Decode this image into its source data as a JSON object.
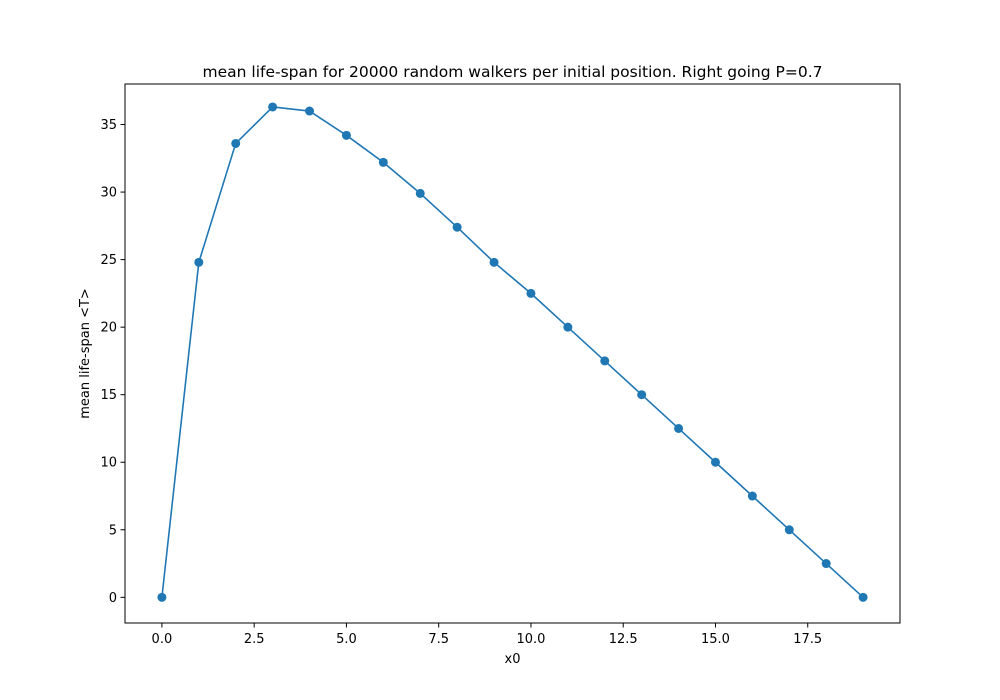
{
  "chart_data": {
    "type": "line",
    "title": "mean life-span for 20000 random walkers per initial position. Right going P=0.7",
    "xlabel": "x0",
    "ylabel": "mean life-span <T>",
    "xlim": [
      -1.0,
      20.0
    ],
    "ylim": [
      -1.9,
      38.0
    ],
    "xticks": [
      0.0,
      2.5,
      5.0,
      7.5,
      10.0,
      12.5,
      15.0,
      17.5
    ],
    "xtick_labels": [
      "0.0",
      "2.5",
      "5.0",
      "7.5",
      "10.0",
      "12.5",
      "15.0",
      "17.5"
    ],
    "yticks": [
      0,
      5,
      10,
      15,
      20,
      25,
      30,
      35
    ],
    "ytick_labels": [
      "0",
      "5",
      "10",
      "15",
      "20",
      "25",
      "30",
      "35"
    ],
    "grid": false,
    "marker": "circle",
    "color": "#1f77b4",
    "series": [
      {
        "x": [
          0,
          1,
          2,
          3,
          4,
          5,
          6,
          7,
          8,
          9,
          10,
          11,
          12,
          13,
          14,
          15,
          16,
          17,
          18,
          19
        ],
        "y": [
          0.0,
          24.8,
          33.6,
          36.3,
          36.0,
          34.2,
          32.2,
          29.9,
          27.4,
          24.8,
          22.5,
          20.0,
          17.5,
          15.0,
          12.5,
          10.0,
          7.5,
          5.0,
          2.5,
          0.0
        ]
      }
    ]
  }
}
